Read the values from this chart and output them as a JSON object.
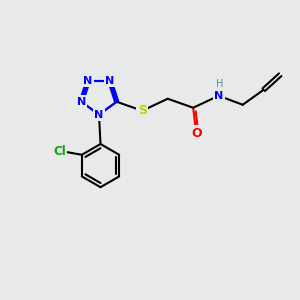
{
  "bg_color": "#e8eaea",
  "atom_colors": {
    "N": "#0000ff",
    "S": "#cccc00",
    "O": "#ff0000",
    "Cl": "#00aa00",
    "C": "#000000",
    "H": "#5a8a8a"
  },
  "bond_color": "#000000",
  "bond_width": 1.5,
  "figsize": [
    3.0,
    3.0
  ],
  "dpi": 100
}
